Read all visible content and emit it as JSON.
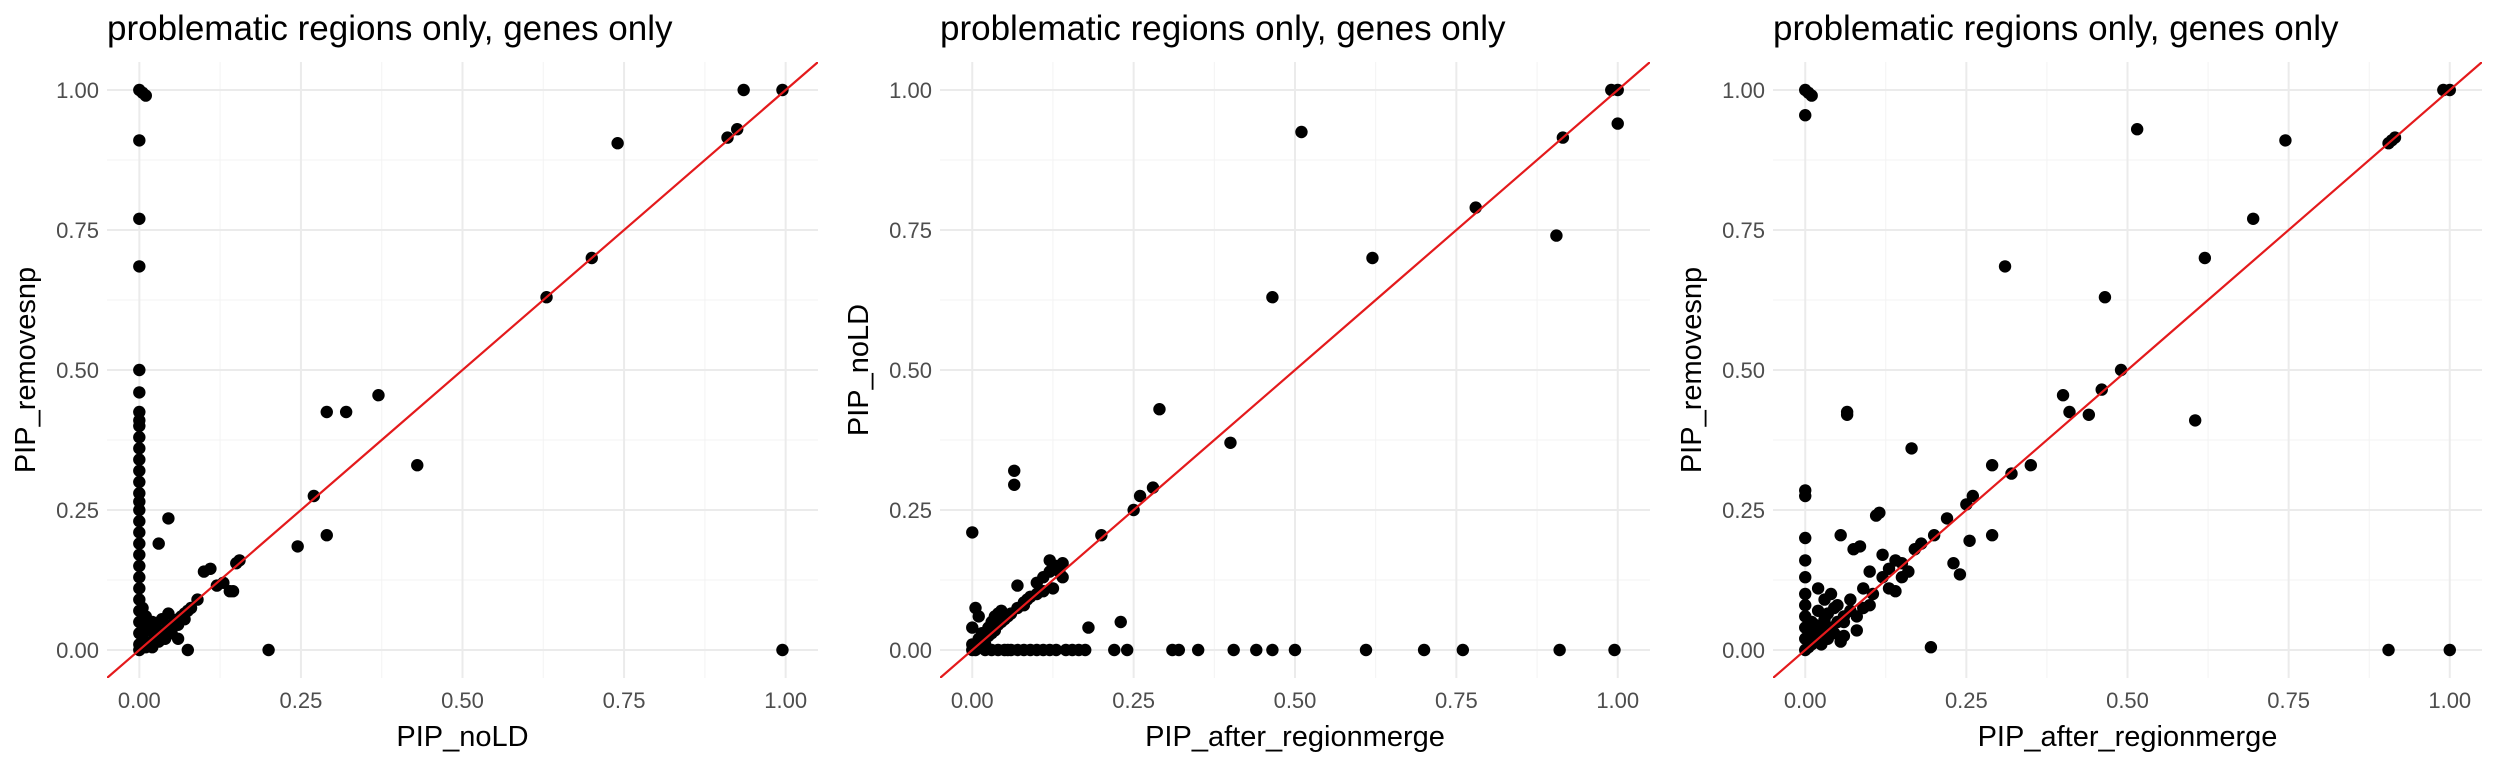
{
  "colors": {
    "point": "#000000",
    "reference_line": "#e41a1c",
    "grid": "#ebebeb",
    "background": "#ffffff"
  },
  "chart_data": [
    {
      "type": "scatter",
      "title": "problematic regions only, genes only",
      "xlabel": "PIP_noLD",
      "ylabel": "PIP_removesnp",
      "xlim": [
        -0.05,
        1.05
      ],
      "ylim": [
        -0.05,
        1.05
      ],
      "x_ticks": [
        "0.00",
        "0.25",
        "0.50",
        "0.75",
        "1.00"
      ],
      "y_ticks": [
        "0.00",
        "0.25",
        "0.50",
        "0.75",
        "1.00"
      ],
      "grid": true,
      "reference_line": "y = x",
      "points": [
        [
          0.0,
          1.0
        ],
        [
          0.005,
          0.995
        ],
        [
          0.01,
          0.99
        ],
        [
          0.0,
          0.91
        ],
        [
          0.0,
          0.77
        ],
        [
          0.0,
          0.685
        ],
        [
          0.0,
          0.5
        ],
        [
          0.0,
          0.46
        ],
        [
          0.0,
          0.425
        ],
        [
          0.0,
          0.41
        ],
        [
          0.0,
          0.4
        ],
        [
          0.0,
          0.38
        ],
        [
          0.0,
          0.36
        ],
        [
          0.0,
          0.34
        ],
        [
          0.0,
          0.32
        ],
        [
          0.0,
          0.3
        ],
        [
          0.0,
          0.28
        ],
        [
          0.0,
          0.265
        ],
        [
          0.0,
          0.25
        ],
        [
          0.0,
          0.23
        ],
        [
          0.0,
          0.21
        ],
        [
          0.0,
          0.19
        ],
        [
          0.0,
          0.17
        ],
        [
          0.0,
          0.15
        ],
        [
          0.0,
          0.13
        ],
        [
          0.0,
          0.11
        ],
        [
          0.0,
          0.09
        ],
        [
          0.0,
          0.07
        ],
        [
          0.0,
          0.05
        ],
        [
          0.0,
          0.03
        ],
        [
          0.0,
          0.01
        ],
        [
          0.0,
          0.0
        ],
        [
          0.005,
          0.02
        ],
        [
          0.01,
          0.04
        ],
        [
          0.01,
          0.005
        ],
        [
          0.015,
          0.01
        ],
        [
          0.02,
          0.015
        ],
        [
          0.025,
          0.02
        ],
        [
          0.03,
          0.025
        ],
        [
          0.035,
          0.03
        ],
        [
          0.04,
          0.035
        ],
        [
          0.045,
          0.04
        ],
        [
          0.05,
          0.045
        ],
        [
          0.055,
          0.05
        ],
        [
          0.06,
          0.055
        ],
        [
          0.065,
          0.06
        ],
        [
          0.07,
          0.065
        ],
        [
          0.075,
          0.07
        ],
        [
          0.08,
          0.075
        ],
        [
          0.02,
          0.005
        ],
        [
          0.03,
          0.015
        ],
        [
          0.04,
          0.02
        ],
        [
          0.05,
          0.03
        ],
        [
          0.06,
          0.045
        ],
        [
          0.015,
          0.035
        ],
        [
          0.025,
          0.045
        ],
        [
          0.035,
          0.055
        ],
        [
          0.045,
          0.065
        ],
        [
          0.005,
          0.075
        ],
        [
          0.01,
          0.06
        ],
        [
          0.02,
          0.05
        ],
        [
          0.03,
          0.19
        ],
        [
          0.045,
          0.235
        ],
        [
          0.06,
          0.02
        ],
        [
          0.07,
          0.055
        ],
        [
          0.075,
          0.0
        ],
        [
          0.09,
          0.09
        ],
        [
          0.1,
          0.14
        ],
        [
          0.11,
          0.145
        ],
        [
          0.12,
          0.115
        ],
        [
          0.13,
          0.12
        ],
        [
          0.14,
          0.105
        ],
        [
          0.145,
          0.105
        ],
        [
          0.15,
          0.155
        ],
        [
          0.155,
          0.16
        ],
        [
          0.2,
          0.0
        ],
        [
          0.245,
          0.185
        ],
        [
          0.27,
          0.275
        ],
        [
          0.29,
          0.205
        ],
        [
          0.29,
          0.425
        ],
        [
          0.32,
          0.425
        ],
        [
          0.37,
          0.455
        ],
        [
          0.43,
          0.33
        ],
        [
          0.63,
          0.63
        ],
        [
          0.7,
          0.7
        ],
        [
          0.74,
          0.905
        ],
        [
          0.91,
          0.915
        ],
        [
          0.925,
          0.93
        ],
        [
          0.935,
          1.0
        ],
        [
          0.995,
          1.0
        ],
        [
          0.995,
          0.0
        ]
      ]
    },
    {
      "type": "scatter",
      "title": "problematic regions only, genes only",
      "xlabel": "PIP_after_regionmerge",
      "ylabel": "PIP_noLD",
      "xlim": [
        -0.05,
        1.05
      ],
      "ylim": [
        -0.05,
        1.05
      ],
      "x_ticks": [
        "0.00",
        "0.25",
        "0.50",
        "0.75",
        "1.00"
      ],
      "y_ticks": [
        "0.00",
        "0.25",
        "0.50",
        "0.75",
        "1.00"
      ],
      "grid": true,
      "reference_line": "y = x",
      "points": [
        [
          0.0,
          0.21
        ],
        [
          0.005,
          0.075
        ],
        [
          0.01,
          0.06
        ],
        [
          0.0,
          0.01
        ],
        [
          0.0,
          0.0
        ],
        [
          0.005,
          0.0
        ],
        [
          0.01,
          0.02
        ],
        [
          0.015,
          0.03
        ],
        [
          0.02,
          0.01
        ],
        [
          0.025,
          0.04
        ],
        [
          0.03,
          0.05
        ],
        [
          0.035,
          0.06
        ],
        [
          0.04,
          0.065
        ],
        [
          0.045,
          0.07
        ],
        [
          0.05,
          0.0
        ],
        [
          0.055,
          0.0
        ],
        [
          0.06,
          0.0
        ],
        [
          0.065,
          0.32
        ],
        [
          0.065,
          0.295
        ],
        [
          0.07,
          0.115
        ],
        [
          0.08,
          0.08
        ],
        [
          0.09,
          0.095
        ],
        [
          0.1,
          0.1
        ],
        [
          0.11,
          0.13
        ],
        [
          0.12,
          0.16
        ],
        [
          0.125,
          0.11
        ],
        [
          0.13,
          0.15
        ],
        [
          0.135,
          0.14
        ],
        [
          0.14,
          0.155
        ],
        [
          0.145,
          0.0
        ],
        [
          0.155,
          0.0
        ],
        [
          0.165,
          0.0
        ],
        [
          0.175,
          0.0
        ],
        [
          0.18,
          0.04
        ],
        [
          0.2,
          0.205
        ],
        [
          0.22,
          0.0
        ],
        [
          0.23,
          0.05
        ],
        [
          0.24,
          0.0
        ],
        [
          0.25,
          0.25
        ],
        [
          0.26,
          0.275
        ],
        [
          0.28,
          0.29
        ],
        [
          0.29,
          0.43
        ],
        [
          0.31,
          0.0
        ],
        [
          0.32,
          0.0
        ],
        [
          0.35,
          0.0
        ],
        [
          0.4,
          0.37
        ],
        [
          0.405,
          0.0
        ],
        [
          0.44,
          0.0
        ],
        [
          0.465,
          0.0
        ],
        [
          0.465,
          0.63
        ],
        [
          0.5,
          0.0
        ],
        [
          0.51,
          0.925
        ],
        [
          0.61,
          0.0
        ],
        [
          0.62,
          0.7
        ],
        [
          0.7,
          0.0
        ],
        [
          0.76,
          0.0
        ],
        [
          0.78,
          0.79
        ],
        [
          0.905,
          0.74
        ],
        [
          0.91,
          0.0
        ],
        [
          0.915,
          0.915
        ],
        [
          0.995,
          0.0
        ],
        [
          0.99,
          1.0
        ],
        [
          1.0,
          1.0
        ],
        [
          1.0,
          0.94
        ],
        [
          0.02,
          0.0
        ],
        [
          0.03,
          0.0
        ],
        [
          0.04,
          0.0
        ],
        [
          0.07,
          0.0
        ],
        [
          0.08,
          0.0
        ],
        [
          0.09,
          0.0
        ],
        [
          0.1,
          0.0
        ],
        [
          0.11,
          0.0
        ],
        [
          0.12,
          0.0
        ],
        [
          0.13,
          0.0
        ],
        [
          0.0,
          0.04
        ],
        [
          0.01,
          0.005
        ],
        [
          0.015,
          0.015
        ],
        [
          0.02,
          0.02
        ],
        [
          0.025,
          0.025
        ],
        [
          0.03,
          0.03
        ],
        [
          0.035,
          0.035
        ],
        [
          0.04,
          0.045
        ],
        [
          0.045,
          0.05
        ],
        [
          0.05,
          0.055
        ],
        [
          0.055,
          0.06
        ],
        [
          0.06,
          0.065
        ],
        [
          0.07,
          0.075
        ],
        [
          0.08,
          0.085
        ],
        [
          0.085,
          0.09
        ],
        [
          0.1,
          0.12
        ],
        [
          0.11,
          0.105
        ],
        [
          0.12,
          0.14
        ],
        [
          0.14,
          0.13
        ]
      ]
    },
    {
      "type": "scatter",
      "title": "problematic regions only, genes only",
      "xlabel": "PIP_after_regionmerge",
      "ylabel": "PIP_removesnp",
      "xlim": [
        -0.05,
        1.05
      ],
      "ylim": [
        -0.05,
        1.05
      ],
      "x_ticks": [
        "0.00",
        "0.25",
        "0.50",
        "0.75",
        "1.00"
      ],
      "y_ticks": [
        "0.00",
        "0.25",
        "0.50",
        "0.75",
        "1.00"
      ],
      "grid": true,
      "reference_line": "y = x",
      "points": [
        [
          0.0,
          1.0
        ],
        [
          0.005,
          0.995
        ],
        [
          0.01,
          0.99
        ],
        [
          0.0,
          0.955
        ],
        [
          0.0,
          0.285
        ],
        [
          0.0,
          0.275
        ],
        [
          0.0,
          0.2
        ],
        [
          0.0,
          0.16
        ],
        [
          0.0,
          0.13
        ],
        [
          0.0,
          0.1
        ],
        [
          0.0,
          0.08
        ],
        [
          0.0,
          0.06
        ],
        [
          0.0,
          0.04
        ],
        [
          0.0,
          0.02
        ],
        [
          0.0,
          0.0
        ],
        [
          0.005,
          0.03
        ],
        [
          0.01,
          0.05
        ],
        [
          0.01,
          0.01
        ],
        [
          0.015,
          0.02
        ],
        [
          0.02,
          0.07
        ],
        [
          0.02,
          0.11
        ],
        [
          0.025,
          0.04
        ],
        [
          0.03,
          0.055
        ],
        [
          0.03,
          0.03
        ],
        [
          0.035,
          0.065
        ],
        [
          0.04,
          0.04
        ],
        [
          0.045,
          0.075
        ],
        [
          0.05,
          0.05
        ],
        [
          0.055,
          0.015
        ],
        [
          0.055,
          0.205
        ],
        [
          0.06,
          0.06
        ],
        [
          0.065,
          0.425
        ],
        [
          0.065,
          0.42
        ],
        [
          0.07,
          0.07
        ],
        [
          0.075,
          0.18
        ],
        [
          0.08,
          0.035
        ],
        [
          0.085,
          0.185
        ],
        [
          0.09,
          0.075
        ],
        [
          0.1,
          0.14
        ],
        [
          0.105,
          0.1
        ],
        [
          0.11,
          0.24
        ],
        [
          0.115,
          0.245
        ],
        [
          0.12,
          0.17
        ],
        [
          0.13,
          0.145
        ],
        [
          0.14,
          0.105
        ],
        [
          0.15,
          0.155
        ],
        [
          0.16,
          0.14
        ],
        [
          0.165,
          0.36
        ],
        [
          0.17,
          0.18
        ],
        [
          0.18,
          0.19
        ],
        [
          0.195,
          0.005
        ],
        [
          0.2,
          0.205
        ],
        [
          0.22,
          0.235
        ],
        [
          0.23,
          0.155
        ],
        [
          0.24,
          0.135
        ],
        [
          0.25,
          0.26
        ],
        [
          0.255,
          0.195
        ],
        [
          0.26,
          0.275
        ],
        [
          0.29,
          0.205
        ],
        [
          0.29,
          0.33
        ],
        [
          0.31,
          0.685
        ],
        [
          0.32,
          0.315
        ],
        [
          0.35,
          0.33
        ],
        [
          0.4,
          0.455
        ],
        [
          0.41,
          0.425
        ],
        [
          0.44,
          0.42
        ],
        [
          0.46,
          0.465
        ],
        [
          0.465,
          0.63
        ],
        [
          0.49,
          0.5
        ],
        [
          0.515,
          0.93
        ],
        [
          0.605,
          0.41
        ],
        [
          0.62,
          0.7
        ],
        [
          0.695,
          0.77
        ],
        [
          0.745,
          0.91
        ],
        [
          0.905,
          0.905
        ],
        [
          0.91,
          0.91
        ],
        [
          0.915,
          0.915
        ],
        [
          0.905,
          0.0
        ],
        [
          0.99,
          1.0
        ],
        [
          1.0,
          1.0
        ],
        [
          1.0,
          0.0
        ],
        [
          0.005,
          0.005
        ],
        [
          0.015,
          0.045
        ],
        [
          0.025,
          0.01
        ],
        [
          0.035,
          0.02
        ],
        [
          0.045,
          0.03
        ],
        [
          0.05,
          0.08
        ],
        [
          0.06,
          0.025
        ],
        [
          0.07,
          0.09
        ],
        [
          0.08,
          0.06
        ],
        [
          0.09,
          0.11
        ],
        [
          0.1,
          0.08
        ],
        [
          0.12,
          0.13
        ],
        [
          0.13,
          0.11
        ],
        [
          0.14,
          0.16
        ],
        [
          0.15,
          0.13
        ],
        [
          0.06,
          0.05
        ],
        [
          0.04,
          0.1
        ],
        [
          0.03,
          0.09
        ],
        [
          0.02,
          0.035
        ]
      ]
    }
  ]
}
